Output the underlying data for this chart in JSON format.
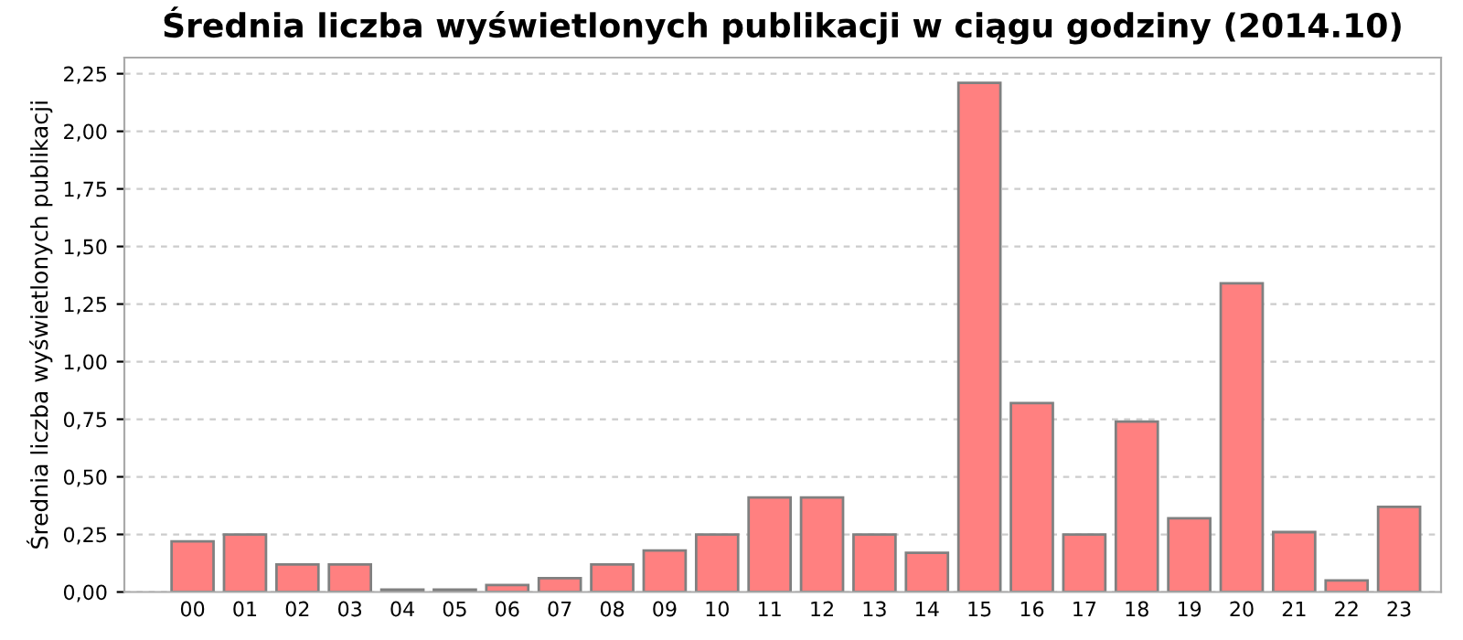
{
  "chart_data": {
    "type": "bar",
    "title": "Średnia liczba wyświetlonych publikacji w ciągu godziny (2014.10)",
    "ylabel": "Średnia liczba wyświetlonych publikacji",
    "categories": [
      "00",
      "01",
      "02",
      "03",
      "04",
      "05",
      "06",
      "07",
      "08",
      "09",
      "10",
      "11",
      "12",
      "13",
      "14",
      "15",
      "16",
      "17",
      "18",
      "19",
      "20",
      "21",
      "22",
      "23"
    ],
    "values": [
      0.22,
      0.25,
      0.12,
      0.12,
      0.01,
      0.01,
      0.03,
      0.06,
      0.12,
      0.18,
      0.25,
      0.41,
      0.41,
      0.25,
      0.17,
      2.21,
      0.82,
      0.25,
      0.74,
      0.32,
      1.34,
      0.26,
      0.05,
      0.37
    ],
    "color": "#ff8080",
    "ylim": [
      0,
      2.32
    ],
    "yticks": [
      {
        "value": 0,
        "label": "0,00"
      },
      {
        "value": 0.25,
        "label": "0,25"
      },
      {
        "value": 0.5,
        "label": "0,50"
      },
      {
        "value": 0.75,
        "label": "0,75"
      },
      {
        "value": 1.0,
        "label": "1,00"
      },
      {
        "value": 1.25,
        "label": "1,25"
      },
      {
        "value": 1.5,
        "label": "1,50"
      },
      {
        "value": 1.75,
        "label": "1,75"
      },
      {
        "value": 2.0,
        "label": "2,00"
      },
      {
        "value": 2.25,
        "label": "2,25"
      }
    ],
    "grid": "y"
  }
}
